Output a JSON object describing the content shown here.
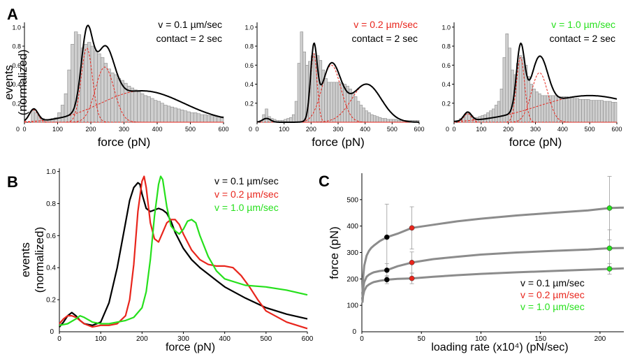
{
  "figure": {
    "colors": {
      "black": "#000000",
      "red": "#e8251c",
      "green": "#26e01c",
      "bar_fill": "#cfcfcf",
      "bar_edge": "#8a8a8a",
      "fit_gray": "#8c8c8c"
    }
  },
  "chart_data": [
    {
      "id": "A1",
      "type": "bar",
      "panel_letter": "A",
      "xlabel": "force (pN)",
      "ylabel": [
        "events",
        "(normalized)"
      ],
      "xlim": [
        0,
        600
      ],
      "ylim": [
        0,
        1.05
      ],
      "xticks": [
        0,
        100,
        200,
        300,
        400,
        500,
        600
      ],
      "yticks": [
        0.2,
        0.4,
        0.6,
        0.8,
        1.0
      ],
      "annotations": [
        {
          "text": "v = 0.1 µm/sec",
          "color": "black"
        },
        {
          "text": "contact = 2 sec",
          "color": "black"
        }
      ],
      "bin_width": 10,
      "bin_start": 20,
      "histogram_values": [
        0.12,
        0.1,
        0.06,
        0.04,
        0.03,
        0.02,
        0.04,
        0.05,
        0.1,
        0.18,
        0.3,
        0.55,
        0.82,
        0.95,
        0.92,
        0.78,
        0.82,
        0.84,
        0.8,
        0.75,
        0.72,
        0.68,
        0.62,
        0.56,
        0.52,
        0.5,
        0.46,
        0.44,
        0.41,
        0.38,
        0.36,
        0.34,
        0.32,
        0.3,
        0.28,
        0.27,
        0.25,
        0.23,
        0.22,
        0.2,
        0.18,
        0.17,
        0.16,
        0.15,
        0.14,
        0.13,
        0.12,
        0.11,
        0.1,
        0.1,
        0.09,
        0.08,
        0.08,
        0.07,
        0.07,
        0.06,
        0.06,
        0.06
      ],
      "fit_components": [
        {
          "mean": 28,
          "sd": 13,
          "amp": 0.13
        },
        {
          "mean": 188,
          "sd": 17,
          "amp": 0.78
        },
        {
          "mean": 242,
          "sd": 28,
          "amp": 0.58
        },
        {
          "mean": 355,
          "sd": 125,
          "amp": 0.33
        }
      ]
    },
    {
      "id": "A2",
      "type": "bar",
      "xlabel": "force (pN)",
      "xlim": [
        0,
        600
      ],
      "ylim": [
        0,
        1.05
      ],
      "xticks": [
        0,
        100,
        200,
        300,
        400,
        500,
        600
      ],
      "yticks": [
        0.2,
        0.4,
        0.6,
        0.8,
        1.0
      ],
      "annotations": [
        {
          "text": "v = 0.2 µm/sec",
          "color": "red"
        },
        {
          "text": "contact = 2 sec",
          "color": "black"
        }
      ],
      "bin_width": 10,
      "bin_start": 20,
      "histogram_values": [
        0.08,
        0.14,
        0.06,
        0.04,
        0.03,
        0.02,
        0.02,
        0.02,
        0.03,
        0.04,
        0.05,
        0.08,
        0.22,
        0.62,
        0.95,
        0.74,
        0.6,
        0.64,
        0.7,
        0.72,
        0.7,
        0.65,
        0.55,
        0.46,
        0.42,
        0.42,
        0.42,
        0.42,
        0.42,
        0.41,
        0.4,
        0.38,
        0.35,
        0.31,
        0.27,
        0.22,
        0.18,
        0.15,
        0.12,
        0.1,
        0.08,
        0.07,
        0.06,
        0.05,
        0.04,
        0.04,
        0.03,
        0.03,
        0.03,
        0.03,
        0.02,
        0.02,
        0.02,
        0.02,
        0.02,
        0.02,
        0.02,
        0.02
      ],
      "fit_components": [
        {
          "mean": 210,
          "sd": 12,
          "amp": 0.72
        },
        {
          "mean": 275,
          "sd": 35,
          "amp": 0.6
        },
        {
          "mean": 405,
          "sd": 55,
          "amp": 0.4
        },
        {
          "mean": 35,
          "sd": 15,
          "amp": 0.04
        }
      ]
    },
    {
      "id": "A3",
      "type": "bar",
      "xlabel": "force (pN)",
      "xlim": [
        0,
        600
      ],
      "ylim": [
        0,
        1.05
      ],
      "xticks": [
        0,
        100,
        200,
        300,
        400,
        500,
        600
      ],
      "yticks": [
        0.2,
        0.4,
        0.6,
        0.8,
        1.0
      ],
      "annotations": [
        {
          "text": "v = 1.0 µm/sec",
          "color": "green"
        },
        {
          "text": "contact = 2 sec",
          "color": "black"
        }
      ],
      "bin_width": 10,
      "bin_start": 20,
      "histogram_values": [
        0.04,
        0.06,
        0.09,
        0.1,
        0.07,
        0.05,
        0.05,
        0.06,
        0.07,
        0.08,
        0.1,
        0.12,
        0.14,
        0.18,
        0.22,
        0.35,
        0.68,
        0.93,
        0.78,
        0.55,
        0.5,
        0.62,
        0.7,
        0.68,
        0.6,
        0.48,
        0.4,
        0.35,
        0.32,
        0.3,
        0.28,
        0.28,
        0.28,
        0.28,
        0.28,
        0.28,
        0.27,
        0.27,
        0.27,
        0.27,
        0.26,
        0.26,
        0.25,
        0.25,
        0.24,
        0.24,
        0.24,
        0.24,
        0.23,
        0.23,
        0.23,
        0.23,
        0.23,
        0.22,
        0.22,
        0.22,
        0.21,
        0.21
      ],
      "fit_components": [
        {
          "mean": 50,
          "sd": 14,
          "amp": 0.09
        },
        {
          "mean": 245,
          "sd": 15,
          "amp": 0.68
        },
        {
          "mean": 315,
          "sd": 30,
          "amp": 0.52
        },
        {
          "mean": 500,
          "sd": 190,
          "amp": 0.28
        }
      ]
    },
    {
      "id": "B",
      "type": "line",
      "panel_letter": "B",
      "xlabel": "force (pN)",
      "ylabel": [
        "events",
        "(normalized)"
      ],
      "xlim": [
        0,
        600
      ],
      "ylim": [
        0,
        1.02
      ],
      "xticks": [
        0,
        100,
        200,
        300,
        400,
        500,
        600
      ],
      "yticks": [
        0.2,
        0.4,
        0.6,
        0.8,
        1.0
      ],
      "series": [
        {
          "name": "v = 0.1 µm/sec",
          "color": "black",
          "x": [
            0,
            10,
            20,
            30,
            40,
            50,
            60,
            80,
            100,
            120,
            140,
            160,
            170,
            180,
            190,
            195,
            200,
            210,
            220,
            230,
            240,
            250,
            260,
            270,
            280,
            300,
            320,
            340,
            360,
            380,
            400,
            450,
            500,
            550,
            600
          ],
          "y": [
            0.03,
            0.06,
            0.1,
            0.12,
            0.1,
            0.07,
            0.05,
            0.04,
            0.06,
            0.18,
            0.4,
            0.68,
            0.82,
            0.9,
            0.93,
            0.92,
            0.86,
            0.77,
            0.75,
            0.76,
            0.77,
            0.76,
            0.74,
            0.69,
            0.62,
            0.52,
            0.45,
            0.4,
            0.36,
            0.32,
            0.28,
            0.21,
            0.15,
            0.11,
            0.08
          ]
        },
        {
          "name": "v = 0.2 µm/sec",
          "color": "red",
          "x": [
            0,
            10,
            20,
            30,
            40,
            50,
            60,
            80,
            100,
            120,
            140,
            160,
            170,
            180,
            190,
            200,
            205,
            210,
            220,
            230,
            240,
            250,
            260,
            270,
            280,
            290,
            300,
            320,
            340,
            360,
            380,
            400,
            420,
            440,
            460,
            480,
            500,
            550,
            600
          ],
          "y": [
            0.05,
            0.08,
            0.1,
            0.1,
            0.09,
            0.07,
            0.05,
            0.03,
            0.04,
            0.04,
            0.05,
            0.1,
            0.2,
            0.42,
            0.75,
            0.94,
            0.97,
            0.9,
            0.68,
            0.58,
            0.56,
            0.62,
            0.68,
            0.7,
            0.7,
            0.67,
            0.61,
            0.51,
            0.45,
            0.42,
            0.41,
            0.41,
            0.4,
            0.35,
            0.28,
            0.2,
            0.13,
            0.06,
            0.02
          ]
        },
        {
          "name": "v = 1.0 µm/sec",
          "color": "green",
          "x": [
            0,
            20,
            40,
            50,
            60,
            80,
            100,
            120,
            140,
            160,
            180,
            200,
            210,
            220,
            230,
            240,
            245,
            250,
            260,
            270,
            280,
            290,
            300,
            310,
            320,
            330,
            340,
            360,
            380,
            400,
            450,
            500,
            550,
            600
          ],
          "y": [
            0.04,
            0.05,
            0.08,
            0.1,
            0.09,
            0.06,
            0.05,
            0.05,
            0.06,
            0.07,
            0.09,
            0.15,
            0.25,
            0.45,
            0.72,
            0.92,
            0.97,
            0.95,
            0.78,
            0.66,
            0.63,
            0.61,
            0.64,
            0.69,
            0.7,
            0.68,
            0.6,
            0.47,
            0.38,
            0.33,
            0.29,
            0.28,
            0.26,
            0.23
          ]
        }
      ]
    },
    {
      "id": "C",
      "type": "scatter",
      "panel_letter": "C",
      "xlabel": "loading rate (x10⁴) (pN/sec)",
      "ylabel": "force (pN)",
      "xlim": [
        0,
        220
      ],
      "ylim": [
        0,
        600
      ],
      "xticks": [
        0,
        50,
        100,
        150,
        200
      ],
      "yticks": [
        100,
        200,
        300,
        400,
        500
      ],
      "legend": [
        "v = 0.1 µm/sec",
        "v = 0.2 µm/sec",
        "v = 1.0 µm/sec"
      ],
      "points": [
        {
          "x": 21,
          "y": 358,
          "err": 125,
          "color": "black"
        },
        {
          "x": 21,
          "y": 233,
          "err": 25,
          "color": "black"
        },
        {
          "x": 21,
          "y": 197,
          "err": 15,
          "color": "black"
        },
        {
          "x": 42,
          "y": 393,
          "err": 80,
          "color": "red"
        },
        {
          "x": 42,
          "y": 262,
          "err": 40,
          "color": "red"
        },
        {
          "x": 42,
          "y": 202,
          "err": 20,
          "color": "red"
        },
        {
          "x": 208,
          "y": 468,
          "err": 120,
          "color": "green"
        },
        {
          "x": 208,
          "y": 316,
          "err": 70,
          "color": "green"
        },
        {
          "x": 208,
          "y": 238,
          "err": 20,
          "color": "green"
        }
      ],
      "fits": [
        {
          "x": [
            0.5,
            1,
            2,
            4,
            6,
            8,
            10,
            15,
            21,
            30,
            42,
            60,
            80,
            100,
            130,
            160,
            190,
            208,
            220
          ],
          "y": [
            150,
            200,
            250,
            288,
            306,
            318,
            326,
            343,
            358,
            371,
            393,
            405,
            418,
            428,
            440,
            450,
            459,
            468,
            470
          ]
        },
        {
          "x": [
            0.5,
            1,
            2,
            4,
            6,
            8,
            10,
            15,
            21,
            30,
            42,
            60,
            80,
            100,
            130,
            160,
            190,
            208,
            220
          ],
          "y": [
            130,
            160,
            188,
            208,
            216,
            221,
            225,
            230,
            233,
            248,
            262,
            275,
            284,
            292,
            300,
            306,
            311,
            316,
            317
          ]
        },
        {
          "x": [
            0.5,
            1,
            2,
            4,
            6,
            8,
            10,
            15,
            21,
            30,
            42,
            60,
            80,
            100,
            130,
            160,
            190,
            208,
            220
          ],
          "y": [
            110,
            135,
            155,
            172,
            179,
            184,
            188,
            193,
            197,
            200,
            202,
            208,
            214,
            219,
            225,
            230,
            235,
            238,
            240
          ]
        }
      ]
    }
  ]
}
